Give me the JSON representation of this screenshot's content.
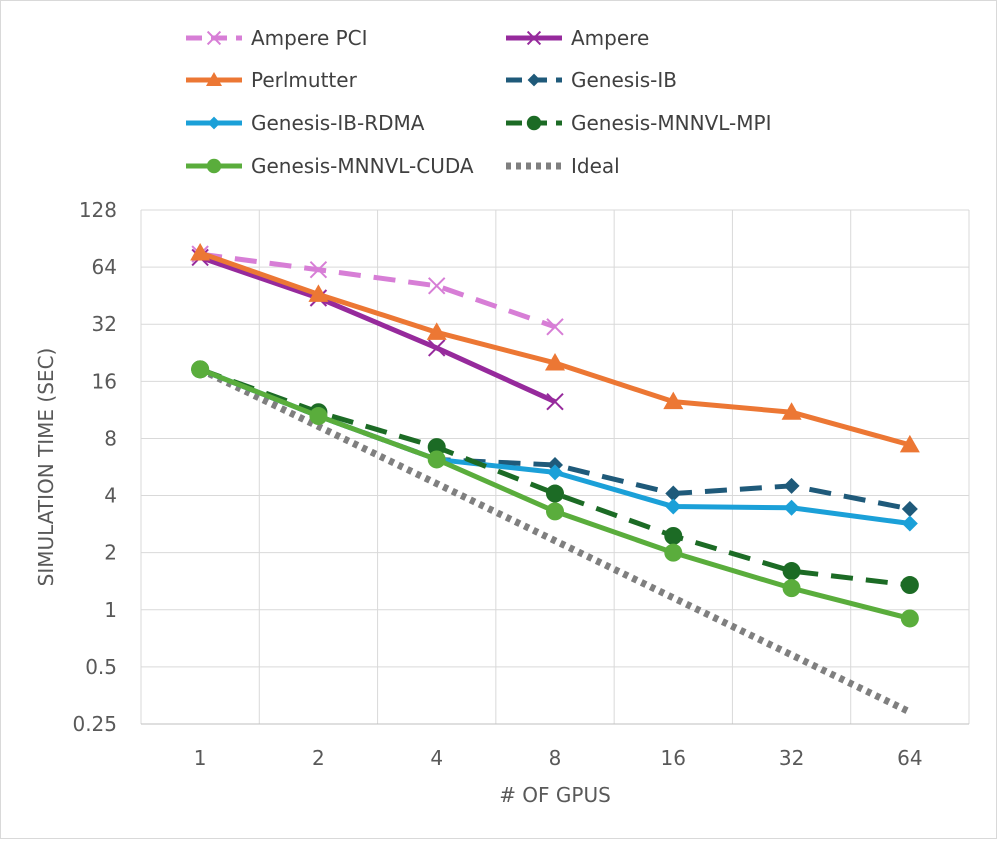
{
  "chart_data": {
    "type": "line",
    "title": "",
    "xlabel": "# OF GPUS",
    "ylabel": "SIMULATION TIME (SEC)",
    "yscale": "log2",
    "ylim": [
      0.25,
      128
    ],
    "categories": [
      "1",
      "2",
      "4",
      "8",
      "16",
      "32",
      "64"
    ],
    "yticks": [
      "0.25",
      "0.5",
      "1",
      "2",
      "4",
      "8",
      "16",
      "32",
      "64",
      "128"
    ],
    "grid": true,
    "legend_position": "top",
    "series": [
      {
        "name": "Ampere PCI",
        "values": [
          75,
          62,
          51,
          31,
          null,
          null,
          null
        ],
        "color": "#d77ed6",
        "dash": "dashed",
        "marker": "x"
      },
      {
        "name": "Ampere",
        "values": [
          72,
          44,
          24,
          12.5,
          null,
          null,
          null
        ],
        "color": "#962a9c",
        "dash": "solid",
        "marker": "x"
      },
      {
        "name": "Perlmutter",
        "values": [
          76,
          46,
          29,
          20,
          12.5,
          11,
          7.4
        ],
        "color": "#ec7734",
        "dash": "solid",
        "marker": "triangle"
      },
      {
        "name": "Genesis-IB",
        "values": [
          18.5,
          10.5,
          6.2,
          5.8,
          4.1,
          4.5,
          3.4
        ],
        "color": "#1f5a7a",
        "dash": "dashed",
        "marker": "diamond"
      },
      {
        "name": "Genesis-IB-RDMA",
        "values": [
          18.5,
          10.5,
          6.2,
          5.3,
          3.5,
          3.45,
          2.85
        ],
        "color": "#1ba0d8",
        "dash": "solid",
        "marker": "diamond"
      },
      {
        "name": "Genesis-MNNVL-MPI",
        "values": [
          18.5,
          11,
          7.2,
          4.1,
          2.45,
          1.6,
          1.35
        ],
        "color": "#1c6b25",
        "dash": "dashed",
        "marker": "circle"
      },
      {
        "name": "Genesis-MNNVL-CUDA",
        "values": [
          18.5,
          10.5,
          6.2,
          3.3,
          2.0,
          1.3,
          0.9
        ],
        "color": "#5aad3c",
        "dash": "solid",
        "marker": "circle"
      },
      {
        "name": "Ideal",
        "values": [
          18.5,
          9.25,
          4.625,
          2.3125,
          1.15625,
          0.578125,
          0.2890625
        ],
        "color": "#7f7f7f",
        "dash": "dotted",
        "marker": "none"
      }
    ]
  }
}
